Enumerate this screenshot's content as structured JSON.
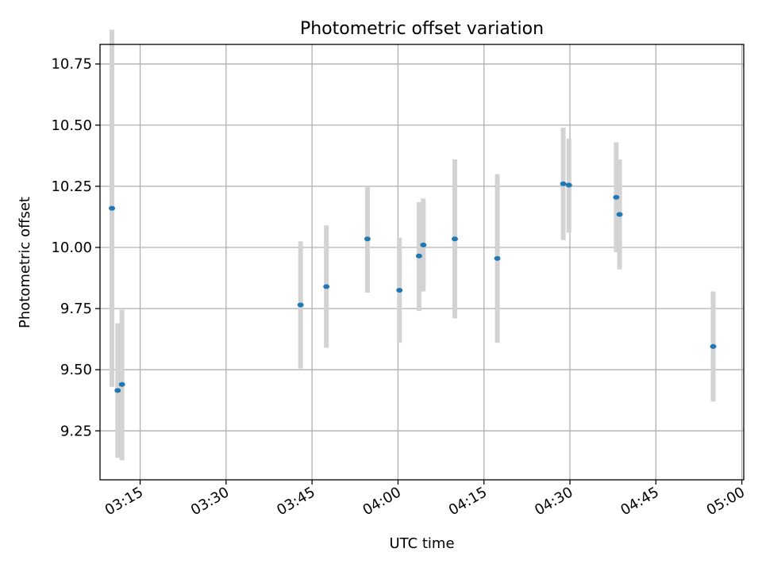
{
  "chart_data": {
    "type": "scatter",
    "title": "Photometric offset variation",
    "xlabel": "UTC time",
    "ylabel": "Photometric offset",
    "grid": true,
    "xlim": [
      "03:08:00",
      "05:00:20"
    ],
    "ylim": [
      9.05,
      10.83
    ],
    "x_ticks": [
      "03:15",
      "03:30",
      "03:45",
      "04:00",
      "04:15",
      "04:30",
      "04:45",
      "05:00"
    ],
    "y_ticks": [
      "9.25",
      "9.50",
      "9.75",
      "10.00",
      "10.25",
      "10.50",
      "10.75"
    ],
    "marker_color": "#1f77b4",
    "errorbar_color": "#d3d3d3",
    "points": [
      {
        "time": "03:10:05",
        "y": 10.16,
        "lo": 9.43,
        "hi": 10.89
      },
      {
        "time": "03:11:05",
        "y": 9.415,
        "lo": 9.14,
        "hi": 9.69
      },
      {
        "time": "03:11:50",
        "y": 9.44,
        "lo": 9.13,
        "hi": 9.745
      },
      {
        "time": "03:43:00",
        "y": 9.765,
        "lo": 9.505,
        "hi": 10.025
      },
      {
        "time": "03:47:30",
        "y": 9.84,
        "lo": 9.59,
        "hi": 10.09
      },
      {
        "time": "03:54:40",
        "y": 10.035,
        "lo": 9.815,
        "hi": 10.25
      },
      {
        "time": "04:00:15",
        "y": 9.825,
        "lo": 9.61,
        "hi": 10.04
      },
      {
        "time": "04:03:40",
        "y": 9.965,
        "lo": 9.74,
        "hi": 10.185
      },
      {
        "time": "04:04:25",
        "y": 10.01,
        "lo": 9.82,
        "hi": 10.2
      },
      {
        "time": "04:09:55",
        "y": 10.035,
        "lo": 9.71,
        "hi": 10.36
      },
      {
        "time": "04:17:20",
        "y": 9.955,
        "lo": 9.61,
        "hi": 10.3
      },
      {
        "time": "04:28:50",
        "y": 10.26,
        "lo": 10.03,
        "hi": 10.49
      },
      {
        "time": "04:29:50",
        "y": 10.255,
        "lo": 10.06,
        "hi": 10.445
      },
      {
        "time": "04:38:05",
        "y": 10.205,
        "lo": 9.98,
        "hi": 10.43
      },
      {
        "time": "04:38:40",
        "y": 10.135,
        "lo": 9.91,
        "hi": 10.36
      },
      {
        "time": "04:55:00",
        "y": 9.595,
        "lo": 9.37,
        "hi": 9.82
      }
    ]
  }
}
